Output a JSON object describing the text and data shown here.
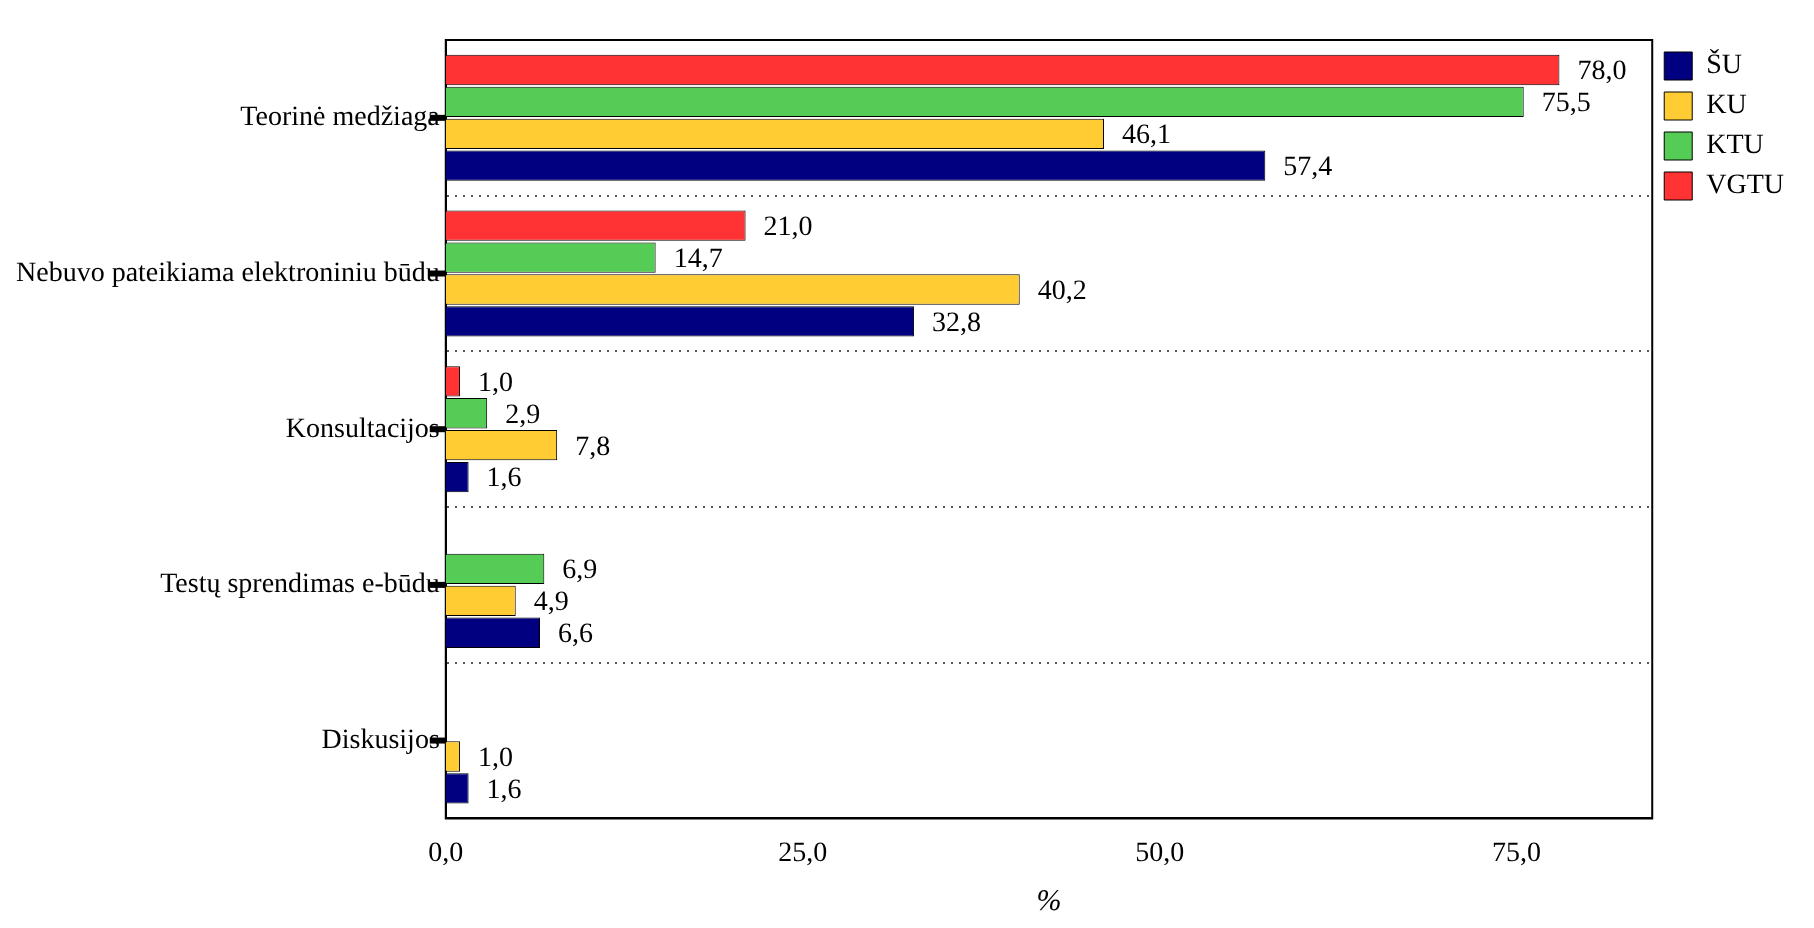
{
  "chart_data": {
    "type": "bar",
    "orientation": "horizontal",
    "xlabel": "%",
    "categories": [
      "Teorinė medžiaga",
      "Nebuvo pateikiama elektroniniu būdu",
      "Konsultacijos",
      "Testų sprendimas e-būdu",
      "Diskusijos"
    ],
    "series": [
      {
        "name": "ŠU",
        "color": "#000080",
        "values": [
          57.4,
          32.8,
          1.6,
          6.6,
          1.6
        ],
        "value_labels": [
          "57,4",
          "32,8",
          "1,6",
          "6,6",
          "1,6"
        ]
      },
      {
        "name": "KU",
        "color": "#ffcc33",
        "values": [
          46.1,
          40.2,
          7.8,
          4.9,
          1.0
        ],
        "value_labels": [
          "46,1",
          "40,2",
          "7,8",
          "4,9",
          "1,0"
        ]
      },
      {
        "name": "KTU",
        "color": "#55cc55",
        "values": [
          75.5,
          14.7,
          2.9,
          6.9,
          null
        ],
        "value_labels": [
          "75,5",
          "14,7",
          "2,9",
          "6,9",
          null
        ]
      },
      {
        "name": "VGTU",
        "color": "#ff3333",
        "values": [
          78.0,
          21.0,
          1.0,
          null,
          null
        ],
        "value_labels": [
          "78,0",
          "21,0",
          "1,0",
          null,
          null
        ]
      }
    ],
    "xlim": [
      0,
      84.5
    ],
    "xticks": [
      {
        "value": 0,
        "label": "0,0"
      },
      {
        "value": 25,
        "label": "25,0"
      },
      {
        "value": 50,
        "label": "50,0"
      },
      {
        "value": 75,
        "label": "75,0"
      }
    ],
    "grid": "y",
    "legend": "top right"
  }
}
